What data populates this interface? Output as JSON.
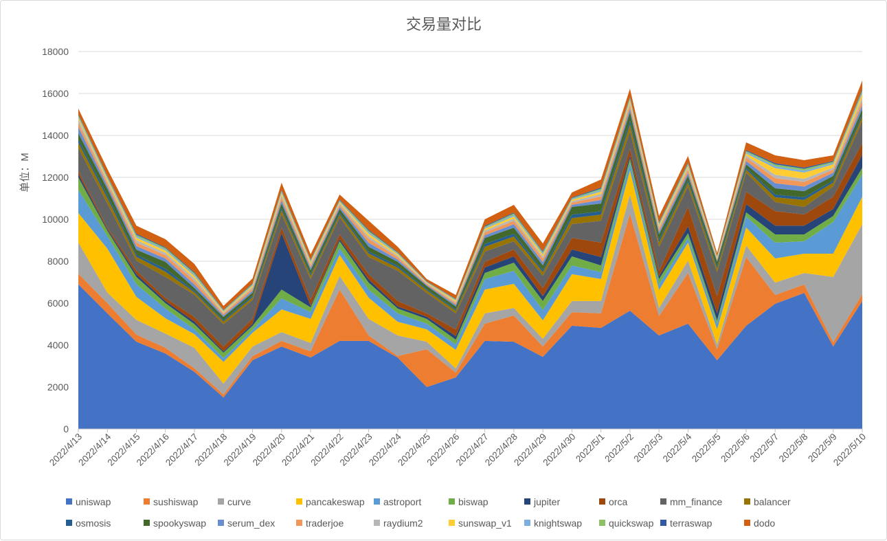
{
  "chart_data": {
    "type": "area",
    "stacked": true,
    "title": "交易量对比",
    "xlabel": "",
    "ylabel": "单位：M",
    "ylim": [
      0,
      18000
    ],
    "yticks": [
      "0",
      "2000",
      "4000",
      "6000",
      "8000",
      "10000",
      "12000",
      "14000",
      "16000",
      "18000"
    ],
    "grid": true,
    "legend_position": "bottom",
    "categories": [
      "2022/4/13",
      "2022/4/14",
      "2022/4/15",
      "2022/4/16",
      "2022/4/17",
      "2022/4/18",
      "2022/4/19",
      "2022/4/20",
      "2022/4/21",
      "2022/4/22",
      "2022/4/23",
      "2022/4/24",
      "2022/4/25",
      "2022/4/26",
      "2022/4/27",
      "2022/4/28",
      "2022/4/29",
      "2022/4/30",
      "2022/5/1",
      "2022/5/2",
      "2022/5/3",
      "2022/5/4",
      "2022/5/5",
      "2022/5/6",
      "2022/5/7",
      "2022/5/8",
      "2022/5/9",
      "2022/5/10"
    ],
    "series": [
      {
        "name": "uniswap",
        "color": "#4472C4",
        "values": [
          6900,
          5510,
          4160,
          3600,
          2720,
          1500,
          3280,
          3930,
          3410,
          4200,
          4200,
          3400,
          2000,
          2460,
          4200,
          4160,
          3440,
          4920,
          4820,
          5640,
          4460,
          5020,
          3280,
          4920,
          5970,
          6490,
          3930,
          6100
        ]
      },
      {
        "name": "sushiswap",
        "color": "#ED7D31",
        "values": [
          500,
          490,
          340,
          270,
          170,
          140,
          190,
          270,
          290,
          2450,
          260,
          80,
          1800,
          230,
          820,
          1250,
          490,
          650,
          690,
          4620,
          920,
          2420,
          520,
          3280,
          420,
          400,
          200,
          330
        ]
      },
      {
        "name": "curve",
        "color": "#A5A5A5",
        "values": [
          1500,
          500,
          700,
          680,
          980,
          520,
          460,
          420,
          400,
          650,
          790,
          980,
          360,
          200,
          490,
          360,
          370,
          530,
          590,
          920,
          390,
          590,
          230,
          550,
          590,
          550,
          3120,
          3340
        ]
      },
      {
        "name": "pancakeswap",
        "color": "#FFC000",
        "values": [
          1400,
          2100,
          1100,
          730,
          650,
          1040,
          660,
          1080,
          1150,
          1000,
          1010,
          650,
          590,
          880,
          1140,
          1150,
          880,
          1280,
          1050,
          1150,
          850,
          860,
          720,
          860,
          1150,
          920,
          1110,
          1310
        ]
      },
      {
        "name": "astroport",
        "color": "#5B9BD5",
        "values": [
          1100,
          600,
          600,
          460,
          230,
          180,
          130,
          530,
          320,
          320,
          390,
          400,
          270,
          260,
          500,
          620,
          490,
          420,
          330,
          360,
          270,
          220,
          270,
          520,
          760,
          590,
          1510,
          1050
        ]
      },
      {
        "name": "biswap",
        "color": "#70AD47",
        "values": [
          600,
          250,
          350,
          260,
          250,
          260,
          200,
          420,
          230,
          330,
          330,
          230,
          230,
          230,
          290,
          390,
          430,
          430,
          320,
          200,
          260,
          230,
          160,
          200,
          390,
          330,
          290,
          330
        ]
      },
      {
        "name": "jupiter",
        "color": "#264478",
        "values": [
          150,
          70,
          130,
          100,
          120,
          60,
          100,
          2690,
          70,
          100,
          150,
          100,
          100,
          170,
          260,
          300,
          230,
          330,
          400,
          150,
          130,
          330,
          330,
          390,
          420,
          420,
          330,
          620
        ]
      },
      {
        "name": "orca",
        "color": "#9E480E",
        "values": [
          150,
          80,
          170,
          150,
          220,
          230,
          230,
          260,
          290,
          230,
          250,
          260,
          160,
          320,
          270,
          330,
          390,
          550,
          690,
          340,
          260,
          920,
          820,
          590,
          690,
          530,
          590,
          560
        ]
      },
      {
        "name": "mm_finance",
        "color": "#636363",
        "values": [
          1100,
          1150,
          480,
          1000,
          1060,
          1070,
          910,
          660,
          990,
          820,
          820,
          1440,
          980,
          760,
          490,
          390,
          590,
          660,
          1040,
          820,
          1150,
          980,
          1150,
          920,
          430,
          360,
          490,
          1050
        ]
      },
      {
        "name": "balancer",
        "color": "#997300",
        "values": [
          250,
          250,
          180,
          250,
          110,
          120,
          120,
          170,
          150,
          140,
          170,
          150,
          120,
          120,
          230,
          230,
          170,
          290,
          290,
          320,
          210,
          180,
          170,
          140,
          230,
          330,
          180,
          200
        ]
      },
      {
        "name": "osmosis",
        "color": "#255E91",
        "values": [
          150,
          140,
          100,
          140,
          70,
          70,
          70,
          100,
          80,
          80,
          100,
          90,
          60,
          60,
          130,
          130,
          100,
          160,
          160,
          180,
          120,
          100,
          100,
          80,
          130,
          130,
          100,
          110
        ]
      },
      {
        "name": "spookyswap",
        "color": "#43682B",
        "values": [
          300,
          310,
          240,
          330,
          140,
          150,
          150,
          220,
          190,
          170,
          220,
          190,
          150,
          150,
          290,
          290,
          220,
          370,
          370,
          410,
          260,
          220,
          220,
          170,
          300,
          290,
          220,
          250
        ]
      },
      {
        "name": "serum_dex",
        "color": "#698ED0",
        "values": [
          300,
          140,
          170,
          160,
          170,
          80,
          100,
          150,
          110,
          100,
          190,
          110,
          50,
          80,
          130,
          160,
          160,
          100,
          170,
          170,
          130,
          140,
          60,
          160,
          240,
          220,
          150,
          200
        ]
      },
      {
        "name": "traderjoe",
        "color": "#F1975A",
        "values": [
          200,
          140,
          170,
          160,
          170,
          80,
          100,
          150,
          110,
          100,
          190,
          110,
          50,
          80,
          130,
          160,
          160,
          100,
          170,
          170,
          130,
          140,
          60,
          160,
          240,
          220,
          150,
          200
        ]
      },
      {
        "name": "raydium2",
        "color": "#B7B7B7",
        "values": [
          150,
          100,
          120,
          110,
          120,
          50,
          70,
          100,
          80,
          70,
          120,
          70,
          30,
          60,
          90,
          110,
          100,
          70,
          120,
          110,
          90,
          100,
          40,
          100,
          160,
          150,
          100,
          140
        ]
      },
      {
        "name": "sunswap_v1",
        "color": "#FFCD33",
        "values": [
          100,
          90,
          110,
          110,
          110,
          50,
          70,
          100,
          80,
          70,
          120,
          70,
          30,
          60,
          90,
          110,
          100,
          70,
          110,
          110,
          90,
          100,
          40,
          100,
          320,
          300,
          150,
          200
        ]
      },
      {
        "name": "knightswap",
        "color": "#7CAFDD",
        "values": [
          60,
          60,
          70,
          60,
          70,
          30,
          40,
          60,
          50,
          40,
          70,
          40,
          20,
          30,
          50,
          70,
          60,
          40,
          70,
          70,
          50,
          60,
          30,
          60,
          90,
          90,
          60,
          80
        ]
      },
      {
        "name": "quickswap",
        "color": "#8CC168",
        "values": [
          60,
          60,
          70,
          60,
          70,
          30,
          40,
          60,
          40,
          40,
          70,
          40,
          20,
          30,
          50,
          70,
          60,
          40,
          70,
          70,
          50,
          60,
          30,
          60,
          90,
          90,
          60,
          80
        ]
      },
      {
        "name": "terraswap",
        "color": "#335AA1",
        "values": [
          40,
          40,
          50,
          40,
          50,
          20,
          30,
          40,
          30,
          30,
          50,
          30,
          20,
          20,
          40,
          40,
          40,
          30,
          50,
          40,
          40,
          40,
          20,
          40,
          60,
          60,
          40,
          60
        ]
      },
      {
        "name": "dodo",
        "color": "#D26012",
        "values": [
          270,
          320,
          390,
          380,
          390,
          190,
          230,
          330,
          260,
          240,
          430,
          250,
          110,
          190,
          310,
          370,
          370,
          240,
          390,
          380,
          300,
          310,
          140,
          370,
          370,
          350,
          270,
          410
        ]
      }
    ]
  }
}
